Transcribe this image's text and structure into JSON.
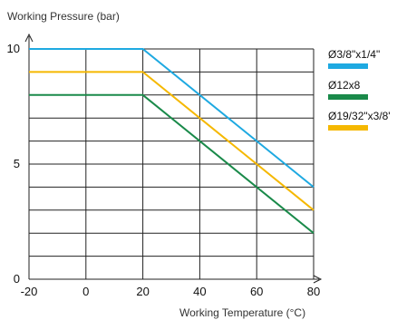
{
  "chart_data": {
    "type": "line",
    "ylabel": "Working Pressure (bar)",
    "xlabel": "Working Temperature (°C)",
    "xlim": [
      -20,
      80
    ],
    "ylim": [
      0,
      10
    ],
    "x_ticks": [
      -20,
      0,
      20,
      40,
      60,
      80
    ],
    "y_ticks": [
      0,
      5,
      10
    ],
    "grid": true,
    "legend_position": "right",
    "series": [
      {
        "name": "Ø3/8\"x1/4\"",
        "color": "#1ea9e1",
        "points": [
          [
            -20,
            10
          ],
          [
            20,
            10
          ],
          [
            80,
            4
          ]
        ]
      },
      {
        "name": "Ø12x8",
        "color": "#1a8a4a",
        "points": [
          [
            -20,
            8
          ],
          [
            20,
            8
          ],
          [
            80,
            2
          ]
        ]
      },
      {
        "name": "Ø19/32\"x3/8'",
        "color": "#f5b800",
        "points": [
          [
            -20,
            9
          ],
          [
            20,
            9
          ],
          [
            80,
            3
          ]
        ]
      }
    ]
  }
}
